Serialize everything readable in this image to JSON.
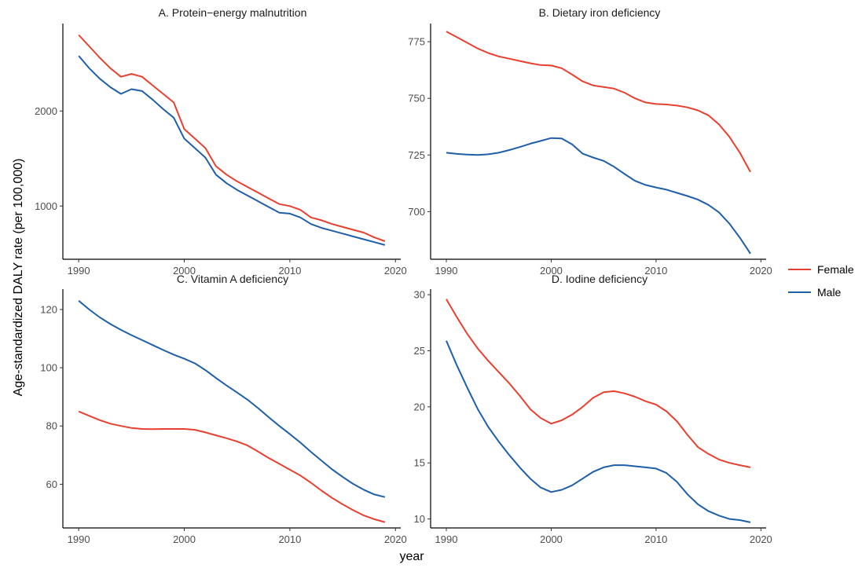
{
  "xlabel": "year",
  "ylabel": "Age-standardized DALY rate (per 100,000)",
  "legend": {
    "placement": "right",
    "items": [
      {
        "label": "Female",
        "color": "#E8402F"
      },
      {
        "label": "Male",
        "color": "#1F5FA8"
      }
    ]
  },
  "colors": {
    "female": "#E8402F",
    "male": "#1F5FA8"
  },
  "chart_data": [
    {
      "type": "line",
      "title": "A. Protein−energy malnutrition",
      "xlim": [
        1988.5,
        2020.5
      ],
      "ylim": [
        440,
        2920
      ],
      "xticks": [
        1990,
        2000,
        2010,
        2020
      ],
      "yticks": [
        1000,
        2000
      ],
      "x": [
        1990,
        1991,
        1992,
        1993,
        1994,
        1995,
        1996,
        1997,
        1998,
        1999,
        2000,
        2001,
        2002,
        2003,
        2004,
        2005,
        2006,
        2007,
        2008,
        2009,
        2010,
        2011,
        2012,
        2013,
        2014,
        2015,
        2016,
        2017,
        2018,
        2019
      ],
      "series": [
        {
          "name": "Female",
          "values": [
            2800,
            2680,
            2560,
            2450,
            2360,
            2390,
            2360,
            2270,
            2180,
            2090,
            1810,
            1710,
            1610,
            1420,
            1330,
            1260,
            1200,
            1140,
            1080,
            1020,
            1000,
            960,
            880,
            850,
            810,
            780,
            750,
            720,
            670,
            630
          ]
        },
        {
          "name": "Male",
          "values": [
            2580,
            2450,
            2340,
            2250,
            2180,
            2230,
            2210,
            2120,
            2020,
            1930,
            1710,
            1610,
            1510,
            1330,
            1240,
            1170,
            1110,
            1050,
            990,
            930,
            920,
            880,
            810,
            770,
            740,
            710,
            680,
            650,
            620,
            590
          ]
        }
      ]
    },
    {
      "type": "line",
      "title": "B. Dietary iron deficiency",
      "xlim": [
        1988.5,
        2020.5
      ],
      "ylim": [
        679,
        783
      ],
      "xticks": [
        1990,
        2000,
        2010,
        2020
      ],
      "yticks": [
        700,
        725,
        750,
        775
      ],
      "x": [
        1990,
        1991,
        1992,
        1993,
        1994,
        1995,
        1996,
        1997,
        1998,
        1999,
        2000,
        2001,
        2002,
        2003,
        2004,
        2005,
        2006,
        2007,
        2008,
        2009,
        2010,
        2011,
        2012,
        2013,
        2014,
        2015,
        2016,
        2017,
        2018,
        2019
      ],
      "series": [
        {
          "name": "Female",
          "values": [
            779.5,
            777,
            774.5,
            772,
            770,
            768.5,
            767.5,
            766.5,
            765.5,
            764.7,
            764.5,
            763.3,
            760.5,
            757.5,
            755.7,
            755,
            754.3,
            752.5,
            750,
            748.2,
            747.5,
            747.3,
            746.8,
            746,
            744.7,
            742.5,
            738.5,
            733,
            726,
            717.5
          ]
        },
        {
          "name": "Male",
          "values": [
            726,
            725.5,
            725.2,
            725,
            725.3,
            726,
            727.2,
            728.5,
            730,
            731.2,
            732.5,
            732.3,
            729.7,
            725.6,
            723.9,
            722.4,
            719.8,
            716.6,
            713.6,
            711.8,
            710.7,
            709.7,
            708.3,
            706.9,
            705.3,
            703,
            699.7,
            694.7,
            688.5,
            681.5
          ]
        }
      ]
    },
    {
      "type": "line",
      "title": "C. Vitamin A deficiency",
      "xlim": [
        1988.5,
        2020.5
      ],
      "ylim": [
        45,
        127
      ],
      "xticks": [
        1990,
        2000,
        2010,
        2020
      ],
      "yticks": [
        60,
        80,
        100,
        120
      ],
      "x": [
        1990,
        1991,
        1992,
        1993,
        1994,
        1995,
        1996,
        1997,
        1998,
        1999,
        2000,
        2001,
        2002,
        2003,
        2004,
        2005,
        2006,
        2007,
        2008,
        2009,
        2010,
        2011,
        2012,
        2013,
        2014,
        2015,
        2016,
        2017,
        2018,
        2019
      ],
      "series": [
        {
          "name": "Female",
          "values": [
            85,
            83.5,
            82,
            80.8,
            80,
            79.3,
            79,
            78.9,
            79,
            79,
            79,
            78.7,
            77.8,
            76.8,
            75.8,
            74.7,
            73.3,
            71.2,
            69,
            67,
            65,
            63,
            60.5,
            57.8,
            55.3,
            53.1,
            51.1,
            49.3,
            48,
            47
          ]
        },
        {
          "name": "Male",
          "values": [
            123,
            120,
            117.3,
            115,
            113,
            111.2,
            109.5,
            107.8,
            106.1,
            104.5,
            103.1,
            101.5,
            99.2,
            96.5,
            93.9,
            91.5,
            89,
            86.1,
            83,
            80,
            77.2,
            74.3,
            71.1,
            68.1,
            65.1,
            62.5,
            60.1,
            58.1,
            56.5,
            55.6
          ]
        }
      ]
    },
    {
      "type": "line",
      "title": "D. Iodine deficiency",
      "xlim": [
        1988.5,
        2020.5
      ],
      "ylim": [
        9.2,
        30.5
      ],
      "xticks": [
        1990,
        2000,
        2010,
        2020
      ],
      "yticks": [
        10,
        15,
        20,
        25,
        30
      ],
      "x": [
        1990,
        1991,
        1992,
        1993,
        1994,
        1995,
        1996,
        1997,
        1998,
        1999,
        2000,
        2001,
        2002,
        2003,
        2004,
        2005,
        2006,
        2007,
        2008,
        2009,
        2010,
        2011,
        2012,
        2013,
        2014,
        2015,
        2016,
        2017,
        2018,
        2019
      ],
      "series": [
        {
          "name": "Female",
          "values": [
            29.6,
            28,
            26.5,
            25.2,
            24.1,
            23.1,
            22.1,
            21,
            19.8,
            19,
            18.5,
            18.8,
            19.3,
            20,
            20.8,
            21.3,
            21.4,
            21.2,
            20.9,
            20.5,
            20.2,
            19.6,
            18.7,
            17.5,
            16.4,
            15.8,
            15.3,
            15,
            14.8,
            14.6
          ]
        },
        {
          "name": "Male",
          "values": [
            25.9,
            23.7,
            21.7,
            19.8,
            18.2,
            16.9,
            15.7,
            14.6,
            13.6,
            12.8,
            12.4,
            12.6,
            13,
            13.6,
            14.2,
            14.6,
            14.8,
            14.8,
            14.7,
            14.6,
            14.5,
            14.1,
            13.3,
            12.2,
            11.3,
            10.7,
            10.3,
            10,
            9.9,
            9.7
          ]
        }
      ]
    }
  ]
}
